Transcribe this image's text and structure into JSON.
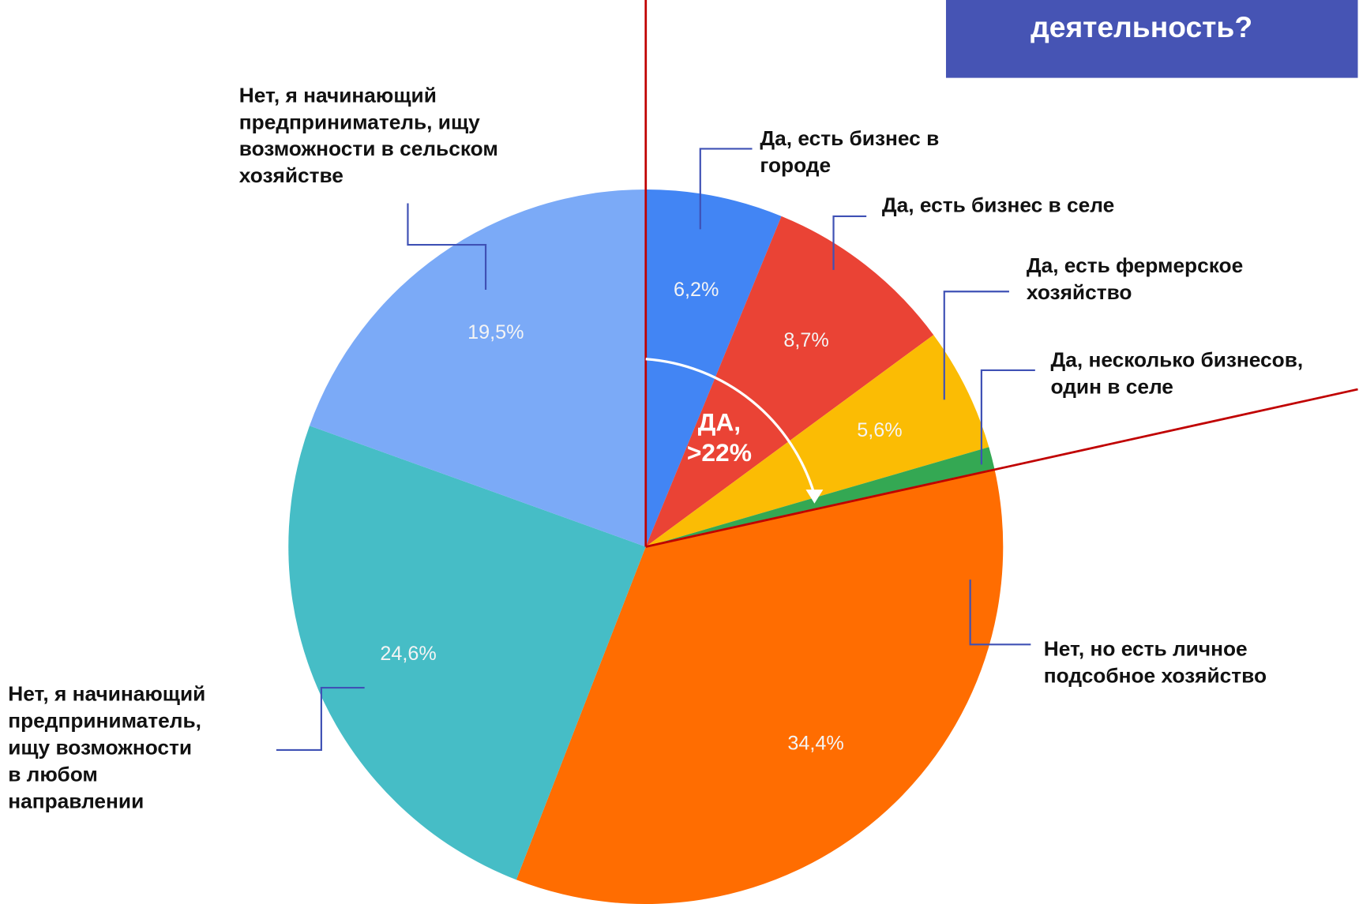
{
  "chart_data": {
    "type": "pie",
    "title": "деятельность?",
    "annotation": "ДА,\n>22%",
    "categories": [
      "Да, есть бизнес в\nгороде",
      "Да, есть бизнес в селе",
      "Да, есть фермерское\nхозяйство",
      "Да, несколько бизнесов,\nодин в селе",
      "Нет, но есть личное\nподсобное хозяйство",
      "Нет, я начинающий\nпредприниматель,\nищу возможности\nв любом\nнаправлении",
      "Нет, я начинающий\nпредприниматель, ищу\nвозможности в сельском\nхозяйстве"
    ],
    "values": [
      6.2,
      8.7,
      5.6,
      1.0,
      34.4,
      24.6,
      19.5
    ],
    "value_labels": [
      "6,2%",
      "8,7%",
      "5,6%",
      null,
      "34,4%",
      "24,6%",
      "19,5%"
    ],
    "colors": [
      "#4285f4",
      "#ea4335",
      "#fbbc04",
      "#34a853",
      "#ff6d01",
      "#46bdc6",
      "#7baaf7"
    ]
  }
}
